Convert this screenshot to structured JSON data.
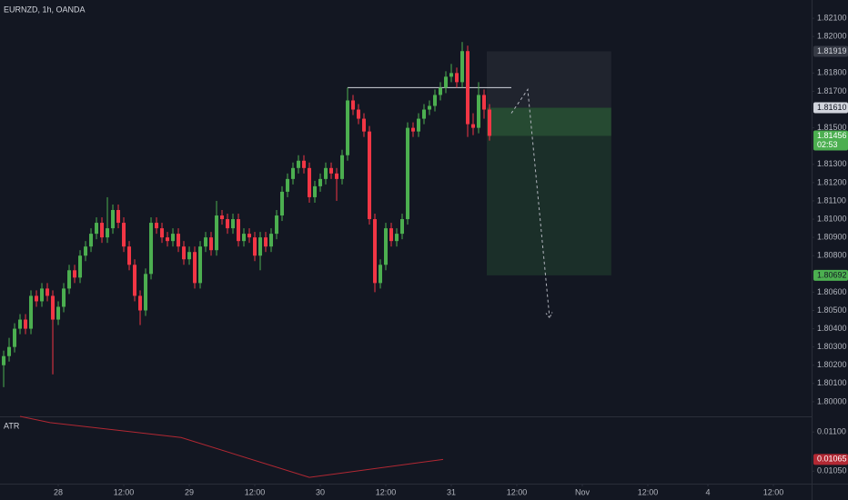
{
  "header": {
    "symbol": "EURNZD, 1h, OANDA"
  },
  "chart_data": {
    "type": "candlestick",
    "up_color": "#4caf50",
    "down_color": "#f23645",
    "grid": false,
    "xlim": [
      -0.67,
      148
    ],
    "ylim": [
      1.7992,
      1.822
    ],
    "yticks": [
      {
        "value": 1.821,
        "label": "1.82100"
      },
      {
        "value": 1.82,
        "label": "1.82000"
      },
      {
        "value": 1.818,
        "label": "1.81800"
      },
      {
        "value": 1.817,
        "label": "1.81700"
      },
      {
        "value": 1.815,
        "label": "1.81500"
      },
      {
        "value": 1.813,
        "label": "1.81300"
      },
      {
        "value": 1.812,
        "label": "1.81200"
      },
      {
        "value": 1.811,
        "label": "1.81100"
      },
      {
        "value": 1.81,
        "label": "1.81000"
      },
      {
        "value": 1.809,
        "label": "1.80900"
      },
      {
        "value": 1.808,
        "label": "1.80800"
      },
      {
        "value": 1.806,
        "label": "1.80600"
      },
      {
        "value": 1.805,
        "label": "1.80500"
      },
      {
        "value": 1.804,
        "label": "1.80400"
      },
      {
        "value": 1.803,
        "label": "1.80300"
      },
      {
        "value": 1.802,
        "label": "1.80200"
      },
      {
        "value": 1.801,
        "label": "1.80100"
      },
      {
        "value": 1.8,
        "label": "1.80000"
      }
    ],
    "xticks": [
      {
        "value": 10,
        "label": "28"
      },
      {
        "value": 22,
        "label": "12:00"
      },
      {
        "value": 34,
        "label": "29"
      },
      {
        "value": 46,
        "label": "12:00"
      },
      {
        "value": 58,
        "label": "30"
      },
      {
        "value": 70,
        "label": "12:00"
      },
      {
        "value": 82,
        "label": "31"
      },
      {
        "value": 94,
        "label": "12:00"
      },
      {
        "value": 106,
        "label": "Nov"
      },
      {
        "value": 118,
        "label": "12:00"
      },
      {
        "value": 129,
        "label": "4"
      },
      {
        "value": 141,
        "label": "12:00"
      }
    ],
    "candles": [
      [
        1.802,
        1.8028,
        1.8008,
        1.8025
      ],
      [
        1.8025,
        1.8035,
        1.8022,
        1.803
      ],
      [
        1.803,
        1.8043,
        1.8027,
        1.804
      ],
      [
        1.804,
        1.8048,
        1.8037,
        1.8045
      ],
      [
        1.8045,
        1.8048,
        1.8037,
        1.804
      ],
      [
        1.804,
        1.8061,
        1.8037,
        1.8058
      ],
      [
        1.8058,
        1.8061,
        1.8052,
        1.8055
      ],
      [
        1.8055,
        1.8065,
        1.8052,
        1.8062
      ],
      [
        1.8062,
        1.8065,
        1.8055,
        1.8058
      ],
      [
        1.8058,
        1.8061,
        1.8015,
        1.8045
      ],
      [
        1.8045,
        1.8055,
        1.8042,
        1.8052
      ],
      [
        1.8052,
        1.8065,
        1.8049,
        1.8062
      ],
      [
        1.8062,
        1.8075,
        1.8059,
        1.8072
      ],
      [
        1.8072,
        1.8075,
        1.8065,
        1.8068
      ],
      [
        1.8068,
        1.8083,
        1.8065,
        1.808
      ],
      [
        1.808,
        1.8088,
        1.8077,
        1.8085
      ],
      [
        1.8085,
        1.8095,
        1.8082,
        1.8092
      ],
      [
        1.8092,
        1.8101,
        1.8089,
        1.8098
      ],
      [
        1.8098,
        1.8101,
        1.8087,
        1.809
      ],
      [
        1.809,
        1.8112,
        1.8087,
        1.8095
      ],
      [
        1.8095,
        1.8108,
        1.8092,
        1.8105
      ],
      [
        1.8105,
        1.8108,
        1.8095,
        1.8098
      ],
      [
        1.8098,
        1.8101,
        1.8082,
        1.8085
      ],
      [
        1.8085,
        1.8088,
        1.8072,
        1.8075
      ],
      [
        1.8075,
        1.8078,
        1.8055,
        1.8058
      ],
      [
        1.8058,
        1.8061,
        1.8042,
        1.805
      ],
      [
        1.805,
        1.8073,
        1.8047,
        1.807
      ],
      [
        1.807,
        1.8101,
        1.8067,
        1.8098
      ],
      [
        1.8098,
        1.8101,
        1.8092,
        1.8095
      ],
      [
        1.8095,
        1.8098,
        1.8087,
        1.809
      ],
      [
        1.809,
        1.8093,
        1.8085,
        1.8088
      ],
      [
        1.8088,
        1.8095,
        1.8085,
        1.8092
      ],
      [
        1.8092,
        1.8095,
        1.8082,
        1.8085
      ],
      [
        1.8085,
        1.8088,
        1.8075,
        1.8078
      ],
      [
        1.8078,
        1.8085,
        1.8075,
        1.8082
      ],
      [
        1.8082,
        1.8085,
        1.8062,
        1.8065
      ],
      [
        1.8065,
        1.8088,
        1.8062,
        1.8085
      ],
      [
        1.8085,
        1.8093,
        1.8082,
        1.809
      ],
      [
        1.809,
        1.8093,
        1.808,
        1.8083
      ],
      [
        1.8083,
        1.811,
        1.808,
        1.8102
      ],
      [
        1.8102,
        1.8105,
        1.8097,
        1.81
      ],
      [
        1.81,
        1.8103,
        1.8092,
        1.8095
      ],
      [
        1.8095,
        1.8103,
        1.8092,
        1.81
      ],
      [
        1.81,
        1.8103,
        1.8085,
        1.8088
      ],
      [
        1.8088,
        1.8095,
        1.8085,
        1.8092
      ],
      [
        1.8092,
        1.8095,
        1.8087,
        1.809
      ],
      [
        1.809,
        1.8093,
        1.8077,
        1.808
      ],
      [
        1.808,
        1.8093,
        1.8072,
        1.809
      ],
      [
        1.809,
        1.8093,
        1.8082,
        1.8085
      ],
      [
        1.8085,
        1.8095,
        1.8082,
        1.8092
      ],
      [
        1.8092,
        1.8105,
        1.8089,
        1.8102
      ],
      [
        1.8102,
        1.8118,
        1.8099,
        1.8115
      ],
      [
        1.8115,
        1.8125,
        1.8112,
        1.8122
      ],
      [
        1.8122,
        1.8131,
        1.8119,
        1.8128
      ],
      [
        1.8128,
        1.8135,
        1.8125,
        1.8132
      ],
      [
        1.8132,
        1.8135,
        1.8125,
        1.8128
      ],
      [
        1.8128,
        1.8131,
        1.8109,
        1.8112
      ],
      [
        1.8112,
        1.8121,
        1.8109,
        1.8118
      ],
      [
        1.8118,
        1.8125,
        1.8115,
        1.8122
      ],
      [
        1.8122,
        1.8131,
        1.8119,
        1.8128
      ],
      [
        1.8128,
        1.8131,
        1.8122,
        1.8125
      ],
      [
        1.8125,
        1.8128,
        1.811,
        1.8122
      ],
      [
        1.8122,
        1.8138,
        1.8119,
        1.8135
      ],
      [
        1.8135,
        1.8172,
        1.8132,
        1.8165
      ],
      [
        1.8165,
        1.8168,
        1.8157,
        1.816
      ],
      [
        1.816,
        1.8163,
        1.8152,
        1.8155
      ],
      [
        1.8155,
        1.8158,
        1.8145,
        1.8148
      ],
      [
        1.8148,
        1.8151,
        1.8097,
        1.81
      ],
      [
        1.81,
        1.8103,
        1.806,
        1.8065
      ],
      [
        1.8065,
        1.8078,
        1.8062,
        1.8075
      ],
      [
        1.8075,
        1.8098,
        1.8072,
        1.8095
      ],
      [
        1.8095,
        1.8098,
        1.8085,
        1.8088
      ],
      [
        1.8088,
        1.8095,
        1.8085,
        1.8092
      ],
      [
        1.8092,
        1.8103,
        1.8089,
        1.81
      ],
      [
        1.81,
        1.8153,
        1.8097,
        1.815
      ],
      [
        1.815,
        1.8153,
        1.8145,
        1.8148
      ],
      [
        1.8148,
        1.8158,
        1.8145,
        1.8155
      ],
      [
        1.8155,
        1.8163,
        1.8152,
        1.816
      ],
      [
        1.816,
        1.8165,
        1.8157,
        1.8162
      ],
      [
        1.8162,
        1.8171,
        1.8159,
        1.8168
      ],
      [
        1.8168,
        1.8175,
        1.8165,
        1.8172
      ],
      [
        1.8172,
        1.8181,
        1.8169,
        1.8178
      ],
      [
        1.8178,
        1.8185,
        1.8175,
        1.818
      ],
      [
        1.818,
        1.8183,
        1.8172,
        1.8175
      ],
      [
        1.8175,
        1.8197,
        1.8172,
        1.8192
      ],
      [
        1.8192,
        1.8195,
        1.8145,
        1.8152
      ],
      [
        1.8152,
        1.8158,
        1.8146,
        1.815
      ],
      [
        1.815,
        1.8175,
        1.8147,
        1.8168
      ],
      [
        1.8168,
        1.8171,
        1.8155,
        1.816
      ],
      [
        1.816,
        1.8163,
        1.8143,
        1.81456
      ]
    ],
    "position": {
      "start": 88.5,
      "end": 111.3,
      "stop": 1.81919,
      "entry": 1.8161,
      "target": 1.80692,
      "color": "#4caf50"
    },
    "price_labels": [
      {
        "value": 1.81919,
        "label": "1.81919",
        "bg": "#363a45",
        "fg": "#d1d4dc"
      },
      {
        "value": 1.8161,
        "label": "1.81610",
        "bg": "#d1d4dc",
        "fg": "#131722"
      },
      {
        "value": 1.81456,
        "label": "1.81456",
        "sub": "02:53",
        "bg": "#4caf50",
        "fg": "#ffffff"
      },
      {
        "value": 1.80692,
        "label": "1.80692",
        "bg": "#4caf50",
        "fg": "#131722"
      }
    ],
    "hline": {
      "start": 63,
      "end": 93,
      "price": 1.8172
    },
    "projection": {
      "x": [
        93,
        96,
        100
      ],
      "y": [
        1.8158,
        1.8171,
        1.8046
      ]
    },
    "atr": {
      "name": "ATR",
      "color": "#b22833",
      "x": [
        3,
        8.5,
        32.5,
        56,
        80.5
      ],
      "values": [
        0.0112,
        0.01112,
        0.01093,
        0.01042,
        0.01065
      ],
      "ylim": [
        0.01034,
        0.0112
      ],
      "yticks": [
        {
          "value": 0.011,
          "label": "0.01100"
        },
        {
          "value": 0.0105,
          "label": "0.01050"
        }
      ],
      "last_label": {
        "value": 0.01065,
        "bg": "#b22833",
        "fg": "#ffffff"
      }
    }
  }
}
